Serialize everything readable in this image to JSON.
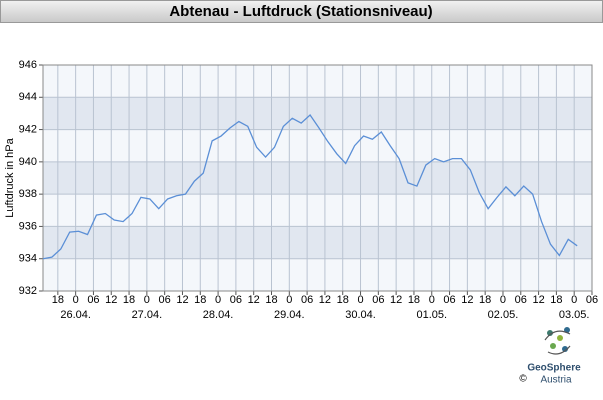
{
  "chart_data": {
    "type": "line",
    "title": "Abtenau - Luftdruck (Stationsniveau)",
    "y_label": "Luftdruck in hPa",
    "color": "#5b8fd6",
    "grid": true,
    "xlim": [
      "25.04. 13:00",
      "03.05. 06:00"
    ],
    "ylim": [
      932,
      946
    ],
    "yticks": [
      932,
      934,
      936,
      938,
      940,
      942,
      944,
      946
    ],
    "xticks": [
      {
        "value": "25.04. 18:00",
        "label": "18"
      },
      {
        "value": "26.04. 00:00",
        "label": "0"
      },
      {
        "value": "26.04. 06:00",
        "label": "06"
      },
      {
        "value": "26.04. 12:00",
        "label": "12"
      },
      {
        "value": "26.04. 18:00",
        "label": "18"
      },
      {
        "value": "27.04. 00:00",
        "label": "0"
      },
      {
        "value": "27.04. 06:00",
        "label": "06"
      },
      {
        "value": "27.04. 12:00",
        "label": "12"
      },
      {
        "value": "27.04. 18:00",
        "label": "18"
      },
      {
        "value": "28.04. 00:00",
        "label": "0"
      },
      {
        "value": "28.04. 06:00",
        "label": "06"
      },
      {
        "value": "28.04. 12:00",
        "label": "12"
      },
      {
        "value": "28.04. 18:00",
        "label": "18"
      },
      {
        "value": "29.04. 00:00",
        "label": "0"
      },
      {
        "value": "29.04. 06:00",
        "label": "06"
      },
      {
        "value": "29.04. 12:00",
        "label": "12"
      },
      {
        "value": "29.04. 18:00",
        "label": "18"
      },
      {
        "value": "30.04. 00:00",
        "label": "0"
      },
      {
        "value": "30.04. 06:00",
        "label": "06"
      },
      {
        "value": "30.04. 12:00",
        "label": "12"
      },
      {
        "value": "30.04. 18:00",
        "label": "18"
      },
      {
        "value": "01.05. 00:00",
        "label": "0"
      },
      {
        "value": "01.05. 06:00",
        "label": "06"
      },
      {
        "value": "01.05. 12:00",
        "label": "12"
      },
      {
        "value": "01.05. 18:00",
        "label": "18"
      },
      {
        "value": "02.05. 00:00",
        "label": "0"
      },
      {
        "value": "02.05. 06:00",
        "label": "06"
      },
      {
        "value": "02.05. 12:00",
        "label": "12"
      },
      {
        "value": "02.05. 18:00",
        "label": "18"
      },
      {
        "value": "03.05. 00:00",
        "label": "0"
      },
      {
        "value": "03.05. 06:00",
        "label": "06"
      }
    ],
    "day_labels": [
      {
        "value": "26.04. 00:00",
        "label": "26.04."
      },
      {
        "value": "27.04. 00:00",
        "label": "27.04."
      },
      {
        "value": "28.04. 00:00",
        "label": "28.04."
      },
      {
        "value": "29.04. 00:00",
        "label": "29.04."
      },
      {
        "value": "30.04. 00:00",
        "label": "30.04."
      },
      {
        "value": "01.05. 00:00",
        "label": "01.05."
      },
      {
        "value": "02.05. 00:00",
        "label": "02.05."
      },
      {
        "value": "03.05. 00:00",
        "label": "03.05."
      }
    ],
    "x": [
      "25.04. 13:00",
      "25.04. 16:00",
      "25.04. 19:00",
      "25.04. 22:00",
      "26.04. 01:00",
      "26.04. 04:00",
      "26.04. 07:00",
      "26.04. 10:00",
      "26.04. 13:00",
      "26.04. 16:00",
      "26.04. 19:00",
      "26.04. 22:00",
      "27.04. 01:00",
      "27.04. 04:00",
      "27.04. 07:00",
      "27.04. 10:00",
      "27.04. 13:00",
      "27.04. 16:00",
      "27.04. 19:00",
      "27.04. 22:00",
      "28.04. 01:00",
      "28.04. 04:00",
      "28.04. 07:00",
      "28.04. 10:00",
      "28.04. 13:00",
      "28.04. 16:00",
      "28.04. 19:00",
      "28.04. 22:00",
      "29.04. 01:00",
      "29.04. 04:00",
      "29.04. 07:00",
      "29.04. 10:00",
      "29.04. 13:00",
      "29.04. 16:00",
      "29.04. 19:00",
      "29.04. 22:00",
      "30.04. 01:00",
      "30.04. 04:00",
      "30.04. 07:00",
      "30.04. 10:00",
      "30.04. 13:00",
      "30.04. 16:00",
      "30.04. 19:00",
      "30.04. 22:00",
      "01.05. 01:00",
      "01.05. 04:00",
      "01.05. 07:00",
      "01.05. 10:00",
      "01.05. 13:00",
      "01.05. 16:00",
      "01.05. 19:00",
      "01.05. 22:00",
      "02.05. 01:00",
      "02.05. 04:00",
      "02.05. 07:00",
      "02.05. 10:00",
      "02.05. 13:00",
      "02.05. 16:00",
      "02.05. 19:00",
      "02.05. 22:00",
      "03.05. 01:00"
    ],
    "values": [
      934.0,
      934.1,
      934.6,
      935.65,
      935.7,
      935.5,
      936.7,
      936.8,
      936.4,
      936.3,
      936.8,
      937.8,
      937.7,
      937.1,
      937.7,
      937.9,
      938.0,
      938.8,
      939.3,
      941.3,
      941.6,
      942.1,
      942.5,
      942.2,
      940.9,
      940.3,
      940.9,
      942.2,
      942.7,
      942.4,
      942.9,
      942.1,
      941.25,
      940.5,
      939.9,
      941.0,
      941.6,
      941.4,
      941.85,
      941.0,
      940.2,
      938.7,
      938.5,
      939.8,
      940.2,
      940.0,
      940.2,
      940.2,
      939.5,
      938.1,
      937.1,
      937.8,
      938.45,
      937.9,
      938.5,
      938.0,
      936.3,
      934.9,
      934.2,
      935.2,
      934.8
    ]
  },
  "logo": {
    "name": "GeoSphere",
    "sub": "Austria",
    "copyright": "©"
  }
}
